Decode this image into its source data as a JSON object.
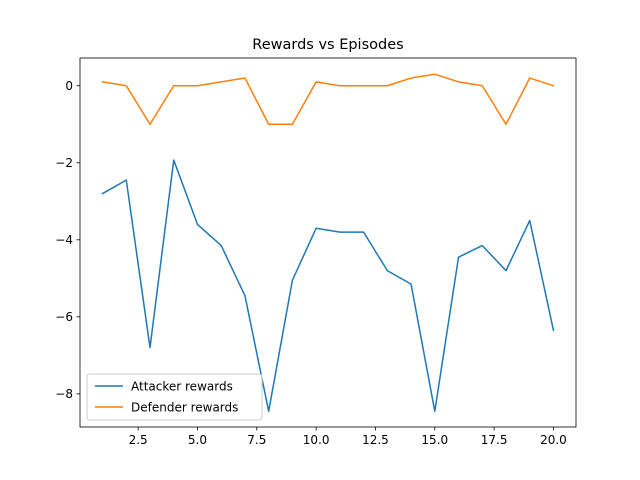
{
  "chart_data": {
    "type": "line",
    "title": "Rewards vs Episodes",
    "xlabel": "",
    "ylabel": "",
    "xlim": [
      0.05,
      20.95
    ],
    "ylim": [
      -8.86,
      0.72
    ],
    "xticks": [
      2.5,
      5.0,
      7.5,
      10.0,
      12.5,
      15.0,
      17.5,
      20.0
    ],
    "xtick_labels": [
      "2.5",
      "5.0",
      "7.5",
      "10.0",
      "12.5",
      "15.0",
      "17.5",
      "20.0"
    ],
    "yticks": [
      0,
      -2,
      -4,
      -6,
      -8
    ],
    "ytick_labels": [
      "0",
      "−2",
      "−4",
      "−6",
      "−8"
    ],
    "grid": false,
    "legend_position": "lower-left",
    "x": [
      1,
      2,
      3,
      4,
      5,
      6,
      7,
      8,
      9,
      10,
      11,
      12,
      13,
      14,
      15,
      16,
      17,
      18,
      19,
      20
    ],
    "series": [
      {
        "name": "Attacker rewards",
        "color": "#1f77b4",
        "values": [
          -2.8,
          -2.45,
          -6.8,
          -1.93,
          -3.6,
          -4.15,
          -5.45,
          -8.45,
          -5.05,
          -3.7,
          -3.8,
          -3.8,
          -4.8,
          -5.15,
          -8.45,
          -4.45,
          -4.15,
          -4.8,
          -3.5,
          -6.35
        ]
      },
      {
        "name": "Defender rewards",
        "color": "#ff7f0e",
        "values": [
          0.1,
          0.0,
          -1.0,
          0.0,
          0.0,
          0.1,
          0.2,
          -1.0,
          -1.0,
          0.1,
          0.0,
          0.0,
          0.0,
          0.2,
          0.3,
          0.1,
          0.0,
          -1.0,
          0.2,
          0.0
        ]
      }
    ]
  }
}
